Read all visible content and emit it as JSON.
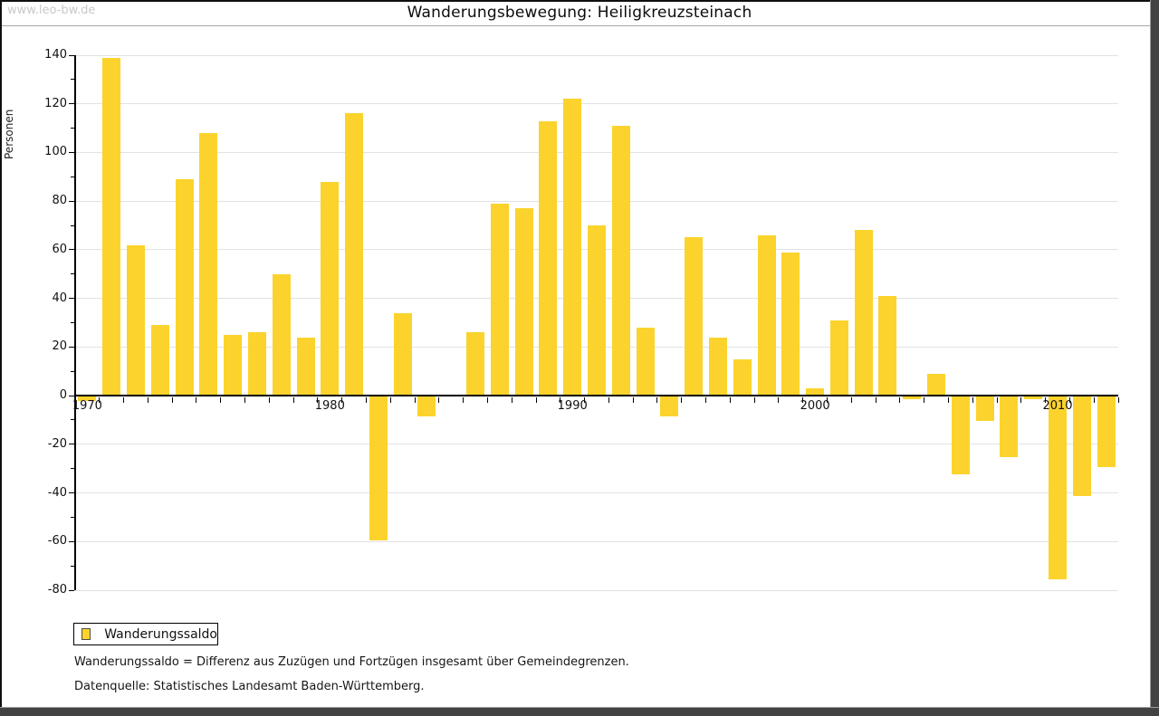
{
  "header": {
    "watermark": "www.leo-bw.de",
    "title": "Wanderungsbewegung: Heiligkreuzsteinach"
  },
  "chart_data": {
    "type": "bar",
    "title": "Wanderungsbewegung: Heiligkreuzsteinach",
    "ylabel": "Personen",
    "ylim": [
      -80,
      140
    ],
    "ytick_step": 20,
    "ytick_minor_step": 10,
    "grid": true,
    "legend_position": "bottom-left",
    "series_name": "Wanderungssaldo",
    "categories": [
      "1970",
      "1971",
      "1972",
      "1973",
      "1974",
      "1975",
      "1976",
      "1977",
      "1978",
      "1979",
      "1980",
      "1981",
      "1982",
      "1983",
      "1984",
      "1985",
      "1986",
      "1987",
      "1988",
      "1989",
      "1990",
      "1991",
      "1992",
      "1993",
      "1994",
      "1995",
      "1996",
      "1997",
      "1998",
      "1999",
      "2000",
      "2001",
      "2002",
      "2003",
      "2004",
      "2005",
      "2006",
      "2007",
      "2008",
      "2009",
      "2010",
      "2011",
      "2012"
    ],
    "values": [
      -2,
      139,
      62,
      29,
      89,
      108,
      25,
      26,
      50,
      24,
      88,
      116,
      -59,
      34,
      -8,
      0,
      26,
      79,
      77,
      113,
      122,
      70,
      111,
      28,
      -8,
      65,
      24,
      15,
      66,
      59,
      3,
      31,
      68,
      41,
      -1,
      9,
      -32,
      -10,
      -25,
      -1,
      -75,
      -41,
      -29
    ],
    "xtick_labels_visible": [
      "1970",
      "1980",
      "1990",
      "2000",
      "2010"
    ]
  },
  "legend": {
    "label": "Wanderungssaldo"
  },
  "footnotes": {
    "definition": "Wanderungssaldo = Differenz aus Zuzügen und Fortzügen insgesamt über Gemeindegrenzen.",
    "source": "Datenquelle: Statistisches Landesamt Baden-Württemberg."
  },
  "colors": {
    "bar": "#FBD32C",
    "grid": "#e2e2e2",
    "axis": "#000000",
    "watermark": "#c9c9c9"
  }
}
